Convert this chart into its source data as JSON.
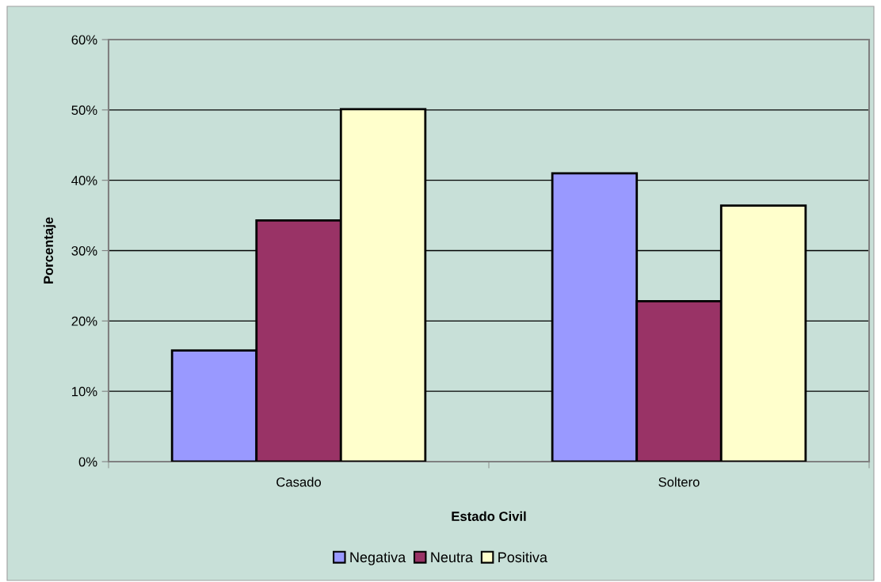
{
  "chart_data": {
    "type": "bar",
    "xlabel": "Estado Civil",
    "ylabel": "Porcentaje",
    "categories": [
      "Casado",
      "Soltero"
    ],
    "series": [
      {
        "name": "Negativa",
        "color": "#9999ff",
        "values": [
          15.8,
          41.0
        ]
      },
      {
        "name": "Neutra",
        "color": "#993366",
        "values": [
          34.3,
          22.8
        ]
      },
      {
        "name": "Positiva",
        "color": "#ffffcc",
        "values": [
          50.1,
          36.4
        ]
      }
    ],
    "ylim": [
      0,
      60
    ],
    "yticks": [
      {
        "value": 0,
        "label": "0%"
      },
      {
        "value": 10,
        "label": "10%"
      },
      {
        "value": 20,
        "label": "20%"
      },
      {
        "value": 30,
        "label": "30%"
      },
      {
        "value": 40,
        "label": "40%"
      },
      {
        "value": 50,
        "label": "50%"
      },
      {
        "value": 60,
        "label": "60%"
      }
    ],
    "grid": "y",
    "legend": "bottom"
  }
}
